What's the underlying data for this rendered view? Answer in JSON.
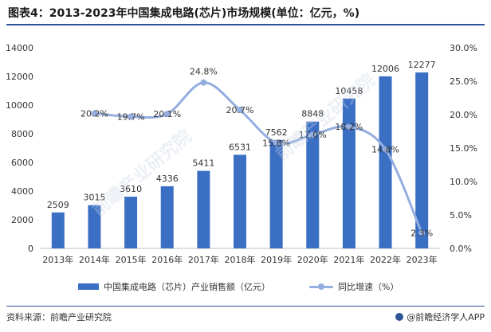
{
  "title": "图表4：2013-2023年中国集成电路(芯片)市场规模(单位：亿元，%)",
  "watermark_text": "前瞻产业研究院",
  "source": "资料来源：前瞻产业研究院",
  "brand": "@前瞻经济学人APP",
  "colors": {
    "bar": "#3a6fc4",
    "line": "#94aee0",
    "title_rule": "#2f5597",
    "axis": "#bfbfbf"
  },
  "chart_data": {
    "type": "bar",
    "title": "",
    "categories": [
      "2013年",
      "2014年",
      "2015年",
      "2016年",
      "2017年",
      "2018年",
      "2019年",
      "2020年",
      "2021年",
      "2022年",
      "2023年"
    ],
    "series": [
      {
        "name": "中国集成电路（芯片）产业销售额（亿元）",
        "type": "bar",
        "axis": "left",
        "values": [
          2509,
          3015,
          3610,
          4336,
          5411,
          6531,
          7562,
          8848,
          10458,
          12006,
          12277
        ],
        "labels": [
          "2509",
          "3015",
          "3610",
          "4336",
          "5411",
          "6531",
          "7562",
          "8848",
          "10458",
          "12006",
          "12277"
        ]
      },
      {
        "name": "同比增速（%）",
        "type": "line",
        "axis": "right",
        "values": [
          null,
          20.2,
          19.7,
          20.1,
          24.8,
          20.7,
          15.8,
          17.0,
          18.2,
          14.8,
          2.3
        ],
        "labels": [
          null,
          "20.2%",
          "19.7%",
          "20.1%",
          "24.8%",
          "20.7%",
          "15.8%",
          "17.0%",
          "18.2%",
          "14.8%",
          "2.3%"
        ]
      }
    ],
    "y_left": {
      "min": 0,
      "max": 14000,
      "ticks": [
        "0",
        "2000",
        "4000",
        "6000",
        "8000",
        "10000",
        "12000",
        "14000"
      ]
    },
    "y_right": {
      "min": 0,
      "max": 30,
      "ticks": [
        "0.0%",
        "5.0%",
        "10.0%",
        "15.0%",
        "20.0%",
        "25.0%",
        "30.0%"
      ]
    },
    "grid": false,
    "legend_position": "bottom"
  }
}
